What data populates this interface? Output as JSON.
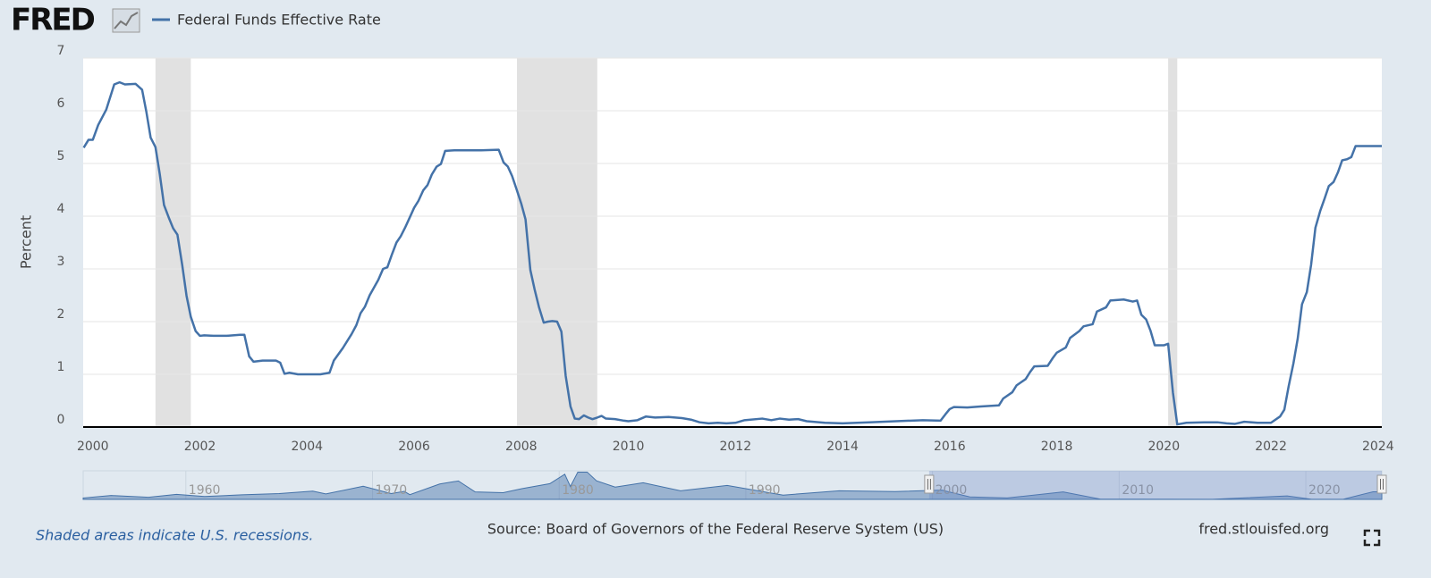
{
  "chart_data": {
    "type": "line",
    "logo": "FRED",
    "y_label": "Percent",
    "note": "Shaded areas indicate U.S. recessions.",
    "source": "Source: Board of Governors of the Federal Reserve System (US)",
    "site": "fred.stlouisfed.org",
    "xlim": [
      1999.82,
      2024.07
    ],
    "xticks": [
      2000,
      2002,
      2004,
      2006,
      2008,
      2010,
      2012,
      2014,
      2016,
      2018,
      2020,
      2022,
      2024
    ],
    "ylim": [
      0,
      7
    ],
    "yticks": [
      0,
      1,
      2,
      3,
      4,
      5,
      6,
      7
    ],
    "grid": true,
    "recessions": [
      {
        "start": 2001.17,
        "end": 2001.83
      },
      {
        "start": 2007.92,
        "end": 2009.42
      },
      {
        "start": 2020.08,
        "end": 2020.25
      }
    ],
    "x": [
      1999.83,
      1999.92,
      2000.0,
      2000.1,
      2000.25,
      2000.4,
      2000.5,
      2000.6,
      2000.8,
      2000.92,
      2001.0,
      2001.08,
      2001.17,
      2001.25,
      2001.33,
      2001.42,
      2001.5,
      2001.58,
      2001.67,
      2001.75,
      2001.83,
      2001.92,
      2002.0,
      2002.08,
      2002.25,
      2002.5,
      2002.75,
      2002.83,
      2002.92,
      2003.0,
      2003.17,
      2003.42,
      2003.5,
      2003.58,
      2003.67,
      2003.83,
      2004.0,
      2004.25,
      2004.42,
      2004.5,
      2004.67,
      2004.83,
      2004.92,
      2005.0,
      2005.08,
      2005.17,
      2005.33,
      2005.42,
      2005.5,
      2005.58,
      2005.67,
      2005.75,
      2005.83,
      2005.92,
      2006.0,
      2006.08,
      2006.17,
      2006.25,
      2006.33,
      2006.42,
      2006.5,
      2006.58,
      2006.75,
      2007.0,
      2007.25,
      2007.58,
      2007.67,
      2007.75,
      2007.83,
      2007.92,
      2008.0,
      2008.08,
      2008.17,
      2008.25,
      2008.33,
      2008.42,
      2008.5,
      2008.58,
      2008.67,
      2008.75,
      2008.83,
      2008.92,
      2009.0,
      2009.08,
      2009.17,
      2009.25,
      2009.33,
      2009.42,
      2009.5,
      2009.58,
      2009.75,
      2009.92,
      2010.0,
      2010.17,
      2010.33,
      2010.5,
      2010.75,
      2011.0,
      2011.17,
      2011.33,
      2011.5,
      2011.67,
      2011.83,
      2012.0,
      2012.17,
      2012.5,
      2012.67,
      2012.83,
      2013.0,
      2013.17,
      2013.33,
      2013.67,
      2014.0,
      2014.5,
      2015.0,
      2015.5,
      2015.83,
      2015.92,
      2016.0,
      2016.08,
      2016.33,
      2016.58,
      2016.92,
      2017.0,
      2017.17,
      2017.25,
      2017.42,
      2017.5,
      2017.58,
      2017.83,
      2017.92,
      2018.0,
      2018.17,
      2018.25,
      2018.42,
      2018.5,
      2018.67,
      2018.75,
      2018.92,
      2019.0,
      2019.25,
      2019.42,
      2019.5,
      2019.58,
      2019.67,
      2019.75,
      2019.83,
      2020.0,
      2020.08,
      2020.17,
      2020.25,
      2020.42,
      2020.75,
      2021.0,
      2021.17,
      2021.33,
      2021.5,
      2021.75,
      2022.0,
      2022.17,
      2022.25,
      2022.33,
      2022.42,
      2022.5,
      2022.58,
      2022.67,
      2022.75,
      2022.83,
      2022.92,
      2023.0,
      2023.08,
      2023.17,
      2023.25,
      2023.33,
      2023.42,
      2023.5,
      2023.58,
      2024.0,
      2024.07
    ],
    "series": [
      {
        "name": "Federal Funds Effective Rate",
        "color": "#4472a8",
        "values": [
          5.3,
          5.45,
          5.45,
          5.73,
          6.02,
          6.5,
          6.54,
          6.5,
          6.51,
          6.4,
          5.98,
          5.49,
          5.31,
          4.8,
          4.21,
          3.97,
          3.77,
          3.65,
          3.07,
          2.49,
          2.09,
          1.82,
          1.73,
          1.74,
          1.73,
          1.73,
          1.75,
          1.75,
          1.34,
          1.24,
          1.26,
          1.26,
          1.22,
          1.01,
          1.03,
          1.0,
          1.0,
          1.0,
          1.03,
          1.26,
          1.5,
          1.76,
          1.93,
          2.16,
          2.28,
          2.5,
          2.79,
          3.0,
          3.03,
          3.26,
          3.5,
          3.62,
          3.78,
          3.98,
          4.16,
          4.29,
          4.49,
          4.59,
          4.79,
          4.94,
          4.99,
          5.24,
          5.25,
          5.25,
          5.25,
          5.26,
          5.02,
          4.94,
          4.76,
          4.49,
          4.24,
          3.94,
          2.98,
          2.61,
          2.28,
          1.98,
          2.0,
          2.01,
          2.0,
          1.81,
          0.97,
          0.39,
          0.16,
          0.15,
          0.22,
          0.18,
          0.15,
          0.18,
          0.21,
          0.16,
          0.15,
          0.12,
          0.11,
          0.13,
          0.2,
          0.18,
          0.19,
          0.17,
          0.14,
          0.09,
          0.07,
          0.08,
          0.07,
          0.08,
          0.13,
          0.16,
          0.13,
          0.16,
          0.14,
          0.15,
          0.11,
          0.08,
          0.07,
          0.09,
          0.11,
          0.13,
          0.12,
          0.24,
          0.34,
          0.38,
          0.37,
          0.39,
          0.41,
          0.54,
          0.66,
          0.79,
          0.91,
          1.04,
          1.15,
          1.16,
          1.3,
          1.41,
          1.51,
          1.69,
          1.82,
          1.91,
          1.95,
          2.19,
          2.27,
          2.4,
          2.42,
          2.38,
          2.4,
          2.13,
          2.04,
          1.83,
          1.55,
          1.55,
          1.58,
          0.65,
          0.05,
          0.08,
          0.09,
          0.09,
          0.07,
          0.06,
          0.1,
          0.08,
          0.08,
          0.2,
          0.33,
          0.77,
          1.21,
          1.68,
          2.33,
          2.56,
          3.08,
          3.78,
          4.1,
          4.33,
          4.57,
          4.65,
          4.83,
          5.06,
          5.08,
          5.12,
          5.33,
          5.33,
          5.33
        ]
      }
    ],
    "navigator": {
      "xlim": [
        1954.5,
        2024.07
      ],
      "ylim": [
        0,
        20
      ],
      "xticks": [
        1960,
        1970,
        1980,
        1990,
        2000,
        2010,
        2020
      ],
      "x": [
        1954.5,
        1956,
        1958,
        1959.5,
        1961,
        1963,
        1965,
        1966.8,
        1967.5,
        1969.5,
        1971,
        1971.7,
        1972,
        1973.6,
        1974.6,
        1975.5,
        1977,
        1978,
        1979.5,
        1980.3,
        1980.6,
        1981,
        1981.5,
        1982,
        1983,
        1984.5,
        1986.5,
        1989,
        1992,
        1995,
        1998,
        2000.5,
        2002,
        2004,
        2007,
        2009,
        2015,
        2019,
        2020.3,
        2022,
        2023.6,
        2024.07
      ],
      "values": [
        1.0,
        2.7,
        1.5,
        3.5,
        2.0,
        3.2,
        4.1,
        5.8,
        3.8,
        9.2,
        4.1,
        5.6,
        3.3,
        10.8,
        12.9,
        5.2,
        4.7,
        7.5,
        11,
        17.6,
        9.0,
        19.1,
        19.1,
        13,
        8.6,
        11.6,
        6.0,
        9.8,
        3.0,
        6.0,
        5.5,
        6.5,
        1.7,
        1.0,
        5.25,
        0.15,
        0.1,
        2.4,
        0.05,
        0.08,
        5.33,
        5.33
      ]
    }
  }
}
